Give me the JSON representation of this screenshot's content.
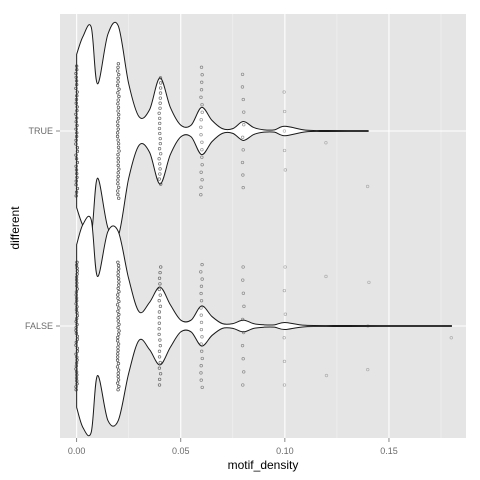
{
  "chart_data": {
    "type": "violin",
    "xlabel": "motif_density",
    "ylabel": "different",
    "xlim": [
      -0.008,
      0.187
    ],
    "x_ticks": [
      {
        "value": 0.0,
        "label": "0.00"
      },
      {
        "value": 0.05,
        "label": "0.05"
      },
      {
        "value": 0.1,
        "label": "0.10"
      },
      {
        "value": 0.15,
        "label": "0.15"
      }
    ],
    "x_minor_ticks": [
      0.025,
      0.075,
      0.125,
      0.175
    ],
    "categories": [
      "FALSE",
      "TRUE"
    ],
    "grid": true,
    "legend": "none",
    "colors": {
      "panel": "#e5e5e5",
      "grid_major": "#ffffff",
      "grid_minor": "#f2f2f2",
      "violin_fill": "#ffffff",
      "violin_stroke": "#1a1a1a",
      "point": "#333333"
    },
    "series": [
      {
        "category": "TRUE",
        "density_profile": [
          [
            0.0,
            0.65
          ],
          [
            0.003,
            0.8
          ],
          [
            0.007,
            0.88
          ],
          [
            0.01,
            0.4
          ],
          [
            0.015,
            0.82
          ],
          [
            0.02,
            0.89
          ],
          [
            0.025,
            0.4
          ],
          [
            0.03,
            0.12
          ],
          [
            0.035,
            0.18
          ],
          [
            0.04,
            0.45
          ],
          [
            0.045,
            0.2
          ],
          [
            0.05,
            0.05
          ],
          [
            0.055,
            0.05
          ],
          [
            0.06,
            0.2
          ],
          [
            0.065,
            0.09
          ],
          [
            0.07,
            0.02
          ],
          [
            0.075,
            0.02
          ],
          [
            0.08,
            0.08
          ],
          [
            0.085,
            0.03
          ],
          [
            0.09,
            0.01
          ],
          [
            0.095,
            0.01
          ],
          [
            0.1,
            0.04
          ],
          [
            0.11,
            0.007
          ],
          [
            0.12,
            0.004
          ],
          [
            0.13,
            0.003
          ],
          [
            0.14,
            0.003
          ]
        ],
        "point_groups": [
          {
            "x": 0.0,
            "n": 36,
            "spread": 0.55,
            "opacity": 0.85
          },
          {
            "x": 0.02,
            "n": 38,
            "spread": 0.57,
            "opacity": 0.85
          },
          {
            "x": 0.04,
            "n": 22,
            "spread": 0.45,
            "opacity": 0.7
          },
          {
            "x": 0.06,
            "n": 18,
            "spread": 0.54,
            "opacity": 0.55
          },
          {
            "x": 0.08,
            "n": 10,
            "spread": 0.48,
            "opacity": 0.5
          },
          {
            "x": 0.1,
            "n": 5,
            "spread": 0.33,
            "opacity": 0.35
          },
          {
            "x": 0.12,
            "n": 1,
            "spread": 0.1,
            "opacity": 0.3
          },
          {
            "x": 0.14,
            "n": 1,
            "spread": 0.47,
            "opacity": 0.3
          }
        ]
      },
      {
        "category": "FALSE",
        "density_profile": [
          [
            0.0,
            0.69
          ],
          [
            0.003,
            0.86
          ],
          [
            0.007,
            0.9
          ],
          [
            0.01,
            0.42
          ],
          [
            0.015,
            0.8
          ],
          [
            0.02,
            0.8
          ],
          [
            0.025,
            0.4
          ],
          [
            0.03,
            0.12
          ],
          [
            0.035,
            0.2
          ],
          [
            0.04,
            0.33
          ],
          [
            0.045,
            0.18
          ],
          [
            0.05,
            0.05
          ],
          [
            0.055,
            0.05
          ],
          [
            0.06,
            0.17
          ],
          [
            0.065,
            0.08
          ],
          [
            0.07,
            0.02
          ],
          [
            0.075,
            0.02
          ],
          [
            0.08,
            0.05
          ],
          [
            0.085,
            0.02
          ],
          [
            0.09,
            0.01
          ],
          [
            0.095,
            0.01
          ],
          [
            0.1,
            0.03
          ],
          [
            0.11,
            0.006
          ],
          [
            0.13,
            0.004
          ],
          [
            0.15,
            0.003
          ],
          [
            0.17,
            0.003
          ],
          [
            0.18,
            0.003
          ]
        ],
        "point_groups": [
          {
            "x": 0.0,
            "n": 44,
            "spread": 0.54,
            "opacity": 0.85
          },
          {
            "x": 0.02,
            "n": 40,
            "spread": 0.54,
            "opacity": 0.85
          },
          {
            "x": 0.04,
            "n": 22,
            "spread": 0.5,
            "opacity": 0.7
          },
          {
            "x": 0.06,
            "n": 18,
            "spread": 0.52,
            "opacity": 0.55
          },
          {
            "x": 0.08,
            "n": 10,
            "spread": 0.5,
            "opacity": 0.5
          },
          {
            "x": 0.1,
            "n": 6,
            "spread": 0.5,
            "opacity": 0.35
          },
          {
            "x": 0.12,
            "n": 2,
            "spread": 0.42,
            "opacity": 0.3
          },
          {
            "x": 0.14,
            "n": 3,
            "spread": 0.37,
            "opacity": 0.3
          },
          {
            "x": 0.18,
            "n": 1,
            "spread": 0.1,
            "opacity": 0.3
          }
        ]
      }
    ]
  }
}
